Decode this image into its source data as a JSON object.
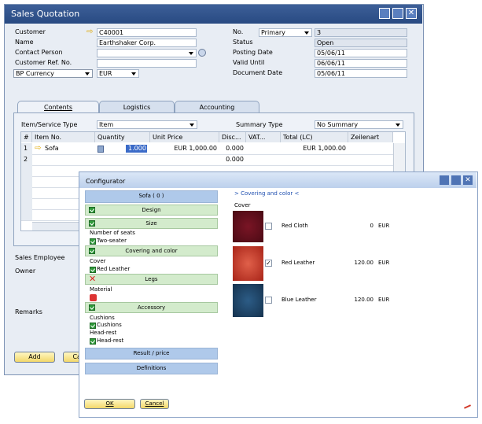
{
  "sales_quotation": {
    "title": "Sales Quotation",
    "left_fields": [
      {
        "label": "Customer",
        "value": "C40001"
      },
      {
        "label": "Name",
        "value": "Earthshaker Corp."
      },
      {
        "label": "Contact Person"
      },
      {
        "label": "Customer Ref. No."
      },
      {
        "label": "BP Currency",
        "value": "EUR"
      }
    ],
    "right_fields": [
      {
        "label": "No.",
        "series": "Primary",
        "value": "3"
      },
      {
        "label": "Status",
        "value": "Open"
      },
      {
        "label": "Posting Date",
        "value": "05/06/11"
      },
      {
        "label": "Valid Until",
        "value": "06/06/11"
      },
      {
        "label": "Document Date",
        "value": "05/06/11"
      }
    ],
    "tabs": [
      "Contents",
      "Logistics",
      "Accounting"
    ],
    "item_service_type": {
      "label": "Item/Service Type",
      "value": "Item"
    },
    "summary_type": {
      "label": "Summary Type",
      "value": "No Summary"
    },
    "table": {
      "columns": [
        "#",
        "Item No.",
        "Quantity",
        "Unit Price",
        "Disc...",
        "VAT...",
        "Total (LC)",
        "Zeilenart"
      ],
      "rows": [
        [
          "1",
          "Sofa",
          "1.000",
          "EUR 1,000.00",
          "0.000",
          "",
          "EUR 1,000.00"
        ],
        [
          "2",
          "",
          "",
          "",
          "0.000"
        ]
      ]
    },
    "sales_employee": "Sales Employee",
    "owner": "Owner",
    "remarks": "Remarks",
    "buttons": [
      "Add",
      "Cancel"
    ]
  },
  "configurator": {
    "title": "Configurator",
    "product": "Sofa ( 0 )",
    "sections": [
      "Design",
      "Size",
      "Number of seats",
      "Two-seater",
      "Covering and color",
      "Cover",
      "Red Leather",
      "Legs",
      "Material",
      "Accessory",
      "Cushions",
      "Cushions",
      "Head-rest",
      "Head-rest"
    ],
    "result": "Result / price",
    "definitions": "Definitions",
    "panel_title": "> Covering and color <",
    "panel_group": "Cover",
    "options": [
      {
        "name": "Red Cloth",
        "price": "0",
        "currency": "EUR"
      },
      {
        "name": "Red Leather",
        "price": "120.00",
        "currency": "EUR"
      },
      {
        "name": "Blue Leather",
        "price": "120.00",
        "currency": "EUR"
      }
    ],
    "buttons": [
      "OK",
      "Cancel"
    ]
  }
}
